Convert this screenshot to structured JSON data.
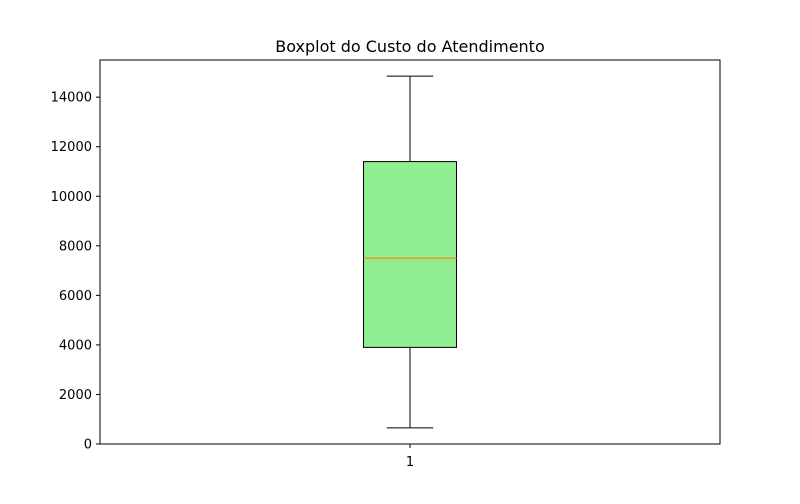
{
  "chart_data": {
    "type": "boxplot",
    "title": "Boxplot do Custo do Atendimento",
    "xlabel": "",
    "ylabel": "",
    "categories": [
      "1"
    ],
    "series": [
      {
        "whisker_low": 650,
        "q1": 3900,
        "median": 7500,
        "q3": 11400,
        "whisker_high": 14850
      }
    ],
    "ylim": [
      0,
      15500
    ],
    "yticks": [
      0,
      2000,
      4000,
      6000,
      8000,
      10000,
      12000,
      14000
    ],
    "grid": false,
    "colors": {
      "box_fill": "#90ee90",
      "box_edge": "#000000",
      "median_line": "#ff7f0e",
      "whisker": "#000000",
      "axis": "#000000"
    }
  }
}
